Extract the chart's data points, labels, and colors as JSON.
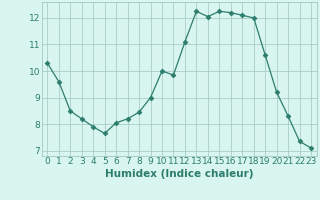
{
  "x": [
    0,
    1,
    2,
    3,
    4,
    5,
    6,
    7,
    8,
    9,
    10,
    11,
    12,
    13,
    14,
    15,
    16,
    17,
    18,
    19,
    20,
    21,
    22,
    23
  ],
  "y": [
    10.3,
    9.6,
    8.5,
    8.2,
    7.9,
    7.65,
    8.05,
    8.2,
    8.45,
    9.0,
    10.0,
    9.85,
    11.1,
    12.25,
    12.05,
    12.25,
    12.2,
    12.1,
    12.0,
    10.6,
    9.2,
    8.3,
    7.35,
    7.1
  ],
  "line_color": "#2d7d6e",
  "marker": "D",
  "marker_size": 2.5,
  "bg_color": "#d8f5f0",
  "grid_color": "#a0c8c0",
  "xlabel": "Humidex (Indice chaleur)",
  "xlim": [
    -0.5,
    23.5
  ],
  "ylim": [
    6.8,
    12.6
  ],
  "yticks": [
    7,
    8,
    9,
    10,
    11,
    12
  ],
  "xticks": [
    0,
    1,
    2,
    3,
    4,
    5,
    6,
    7,
    8,
    9,
    10,
    11,
    12,
    13,
    14,
    15,
    16,
    17,
    18,
    19,
    20,
    21,
    22,
    23
  ],
  "tick_fontsize": 6.5,
  "xlabel_fontsize": 7.5
}
